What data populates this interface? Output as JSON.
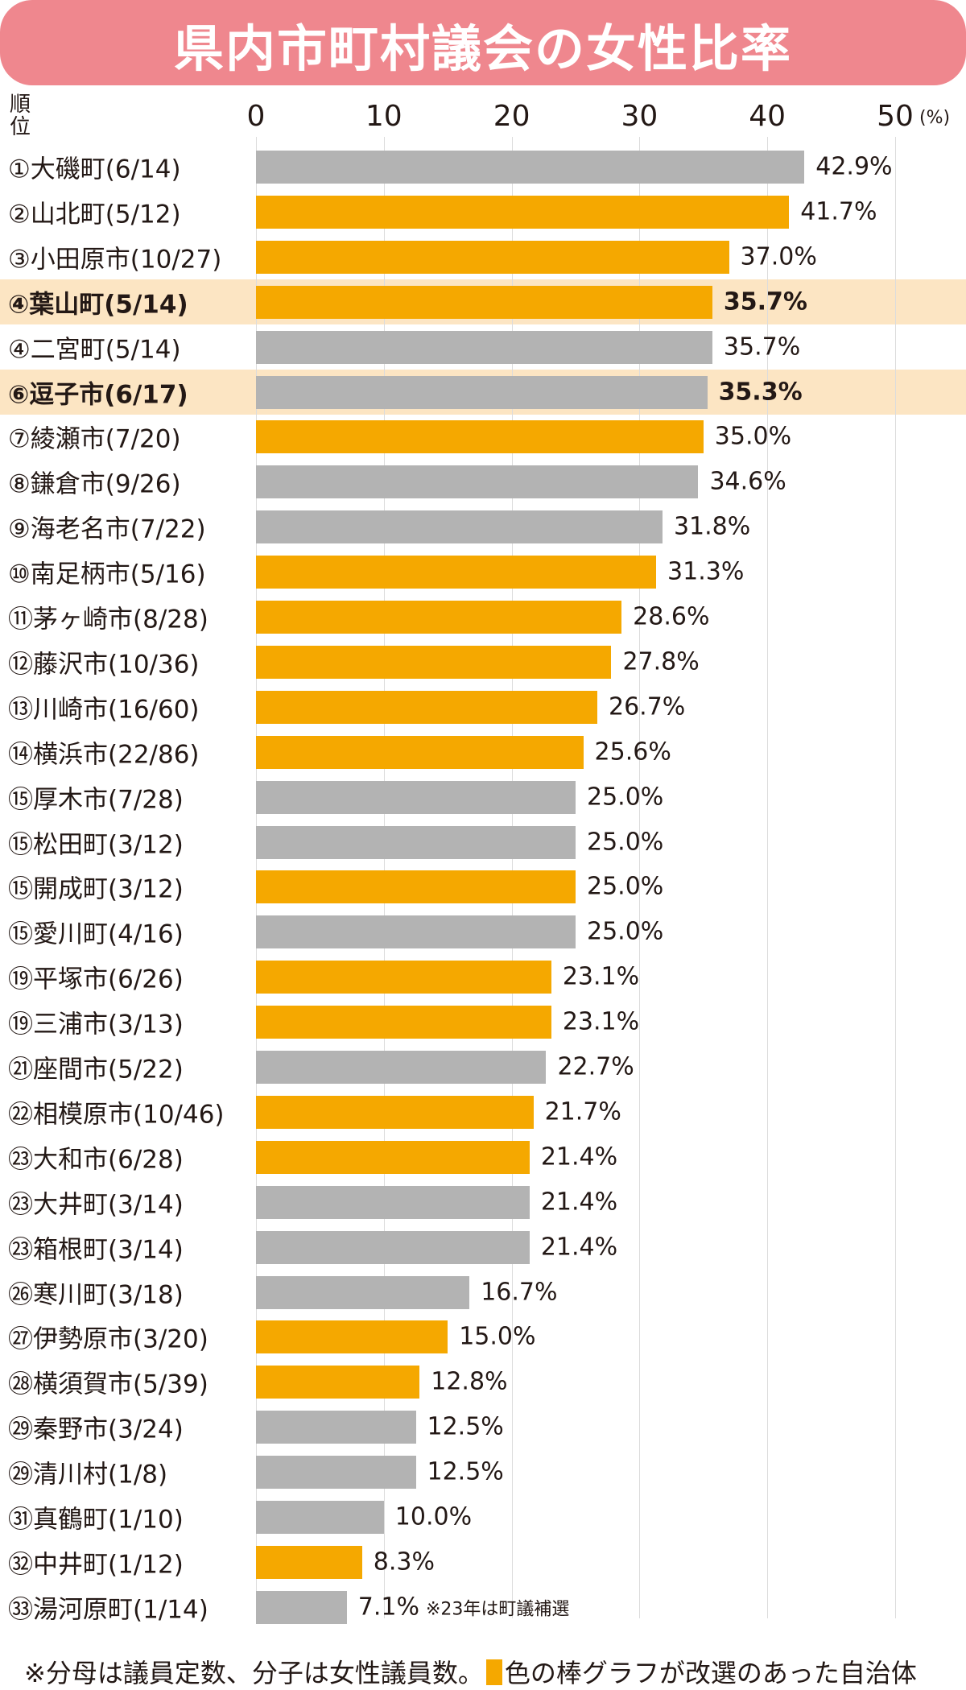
{
  "chart_data": {
    "type": "bar",
    "orientation": "horizontal",
    "title": "県内市町村議会の女性比率",
    "rank_header": "順位",
    "xlim": [
      0,
      50
    ],
    "xticks": [
      "0",
      "10",
      "20",
      "30",
      "40",
      "50"
    ],
    "x_unit": "(%)",
    "grid": true,
    "colors": {
      "reelected": "#f5a800",
      "other": "#b3b3b3",
      "highlight": "#fce5c3",
      "title_bg": "#ef878e"
    },
    "rows": [
      {
        "label": "①大磯町(6/14)",
        "value": 42.9,
        "value_label": "42.9%",
        "color": "other"
      },
      {
        "label": "②山北町(5/12)",
        "value": 41.7,
        "value_label": "41.7%",
        "color": "reelected"
      },
      {
        "label": "③小田原市(10/27)",
        "value": 37.0,
        "value_label": "37.0%",
        "color": "reelected"
      },
      {
        "label": "④葉山町(5/14)",
        "value": 35.7,
        "value_label": "35.7%",
        "color": "reelected",
        "highlight": true
      },
      {
        "label": "④二宮町(5/14)",
        "value": 35.7,
        "value_label": "35.7%",
        "color": "other"
      },
      {
        "label": "⑥逗子市(6/17)",
        "value": 35.3,
        "value_label": "35.3%",
        "color": "other",
        "highlight": true
      },
      {
        "label": "⑦綾瀬市(7/20)",
        "value": 35.0,
        "value_label": "35.0%",
        "color": "reelected"
      },
      {
        "label": "⑧鎌倉市(9/26)",
        "value": 34.6,
        "value_label": "34.6%",
        "color": "other"
      },
      {
        "label": "⑨海老名市(7/22)",
        "value": 31.8,
        "value_label": "31.8%",
        "color": "other"
      },
      {
        "label": "⑩南足柄市(5/16)",
        "value": 31.3,
        "value_label": "31.3%",
        "color": "reelected"
      },
      {
        "label": "⑪茅ヶ崎市(8/28)",
        "value": 28.6,
        "value_label": "28.6%",
        "color": "reelected"
      },
      {
        "label": "⑫藤沢市(10/36)",
        "value": 27.8,
        "value_label": "27.8%",
        "color": "reelected"
      },
      {
        "label": "⑬川崎市(16/60)",
        "value": 26.7,
        "value_label": "26.7%",
        "color": "reelected"
      },
      {
        "label": "⑭横浜市(22/86)",
        "value": 25.6,
        "value_label": "25.6%",
        "color": "reelected"
      },
      {
        "label": "⑮厚木市(7/28)",
        "value": 25.0,
        "value_label": "25.0%",
        "color": "other"
      },
      {
        "label": "⑮松田町(3/12)",
        "value": 25.0,
        "value_label": "25.0%",
        "color": "other"
      },
      {
        "label": "⑮開成町(3/12)",
        "value": 25.0,
        "value_label": "25.0%",
        "color": "reelected"
      },
      {
        "label": "⑮愛川町(4/16)",
        "value": 25.0,
        "value_label": "25.0%",
        "color": "other"
      },
      {
        "label": "⑲平塚市(6/26)",
        "value": 23.1,
        "value_label": "23.1%",
        "color": "reelected"
      },
      {
        "label": "⑲三浦市(3/13)",
        "value": 23.1,
        "value_label": "23.1%",
        "color": "reelected"
      },
      {
        "label": "㉑座間市(5/22)",
        "value": 22.7,
        "value_label": "22.7%",
        "color": "other"
      },
      {
        "label": "㉒相模原市(10/46)",
        "value": 21.7,
        "value_label": "21.7%",
        "color": "reelected"
      },
      {
        "label": "㉓大和市(6/28)",
        "value": 21.4,
        "value_label": "21.4%",
        "color": "reelected"
      },
      {
        "label": "㉓大井町(3/14)",
        "value": 21.4,
        "value_label": "21.4%",
        "color": "other"
      },
      {
        "label": "㉓箱根町(3/14)",
        "value": 21.4,
        "value_label": "21.4%",
        "color": "other"
      },
      {
        "label": "㉖寒川町(3/18)",
        "value": 16.7,
        "value_label": "16.7%",
        "color": "other"
      },
      {
        "label": "㉗伊勢原市(3/20)",
        "value": 15.0,
        "value_label": "15.0%",
        "color": "reelected"
      },
      {
        "label": "㉘横須賀市(5/39)",
        "value": 12.8,
        "value_label": "12.8%",
        "color": "reelected"
      },
      {
        "label": "㉙秦野市(3/24)",
        "value": 12.5,
        "value_label": "12.5%",
        "color": "other"
      },
      {
        "label": "㉙清川村(1/8)",
        "value": 12.5,
        "value_label": "12.5%",
        "color": "other"
      },
      {
        "label": "㉛真鶴町(1/10)",
        "value": 10.0,
        "value_label": "10.0%",
        "color": "other"
      },
      {
        "label": "㉜中井町(1/12)",
        "value": 8.3,
        "value_label": "8.3%",
        "color": "reelected"
      },
      {
        "label": "㉝湯河原町(1/14)",
        "value": 7.1,
        "value_label": "7.1%",
        "color": "other",
        "note": "※23年は町議補選"
      }
    ],
    "footnote_a": "※分母は議員定数、分子は女性議員数。",
    "footnote_b": "色の棒グラフが改選のあった自治体"
  }
}
